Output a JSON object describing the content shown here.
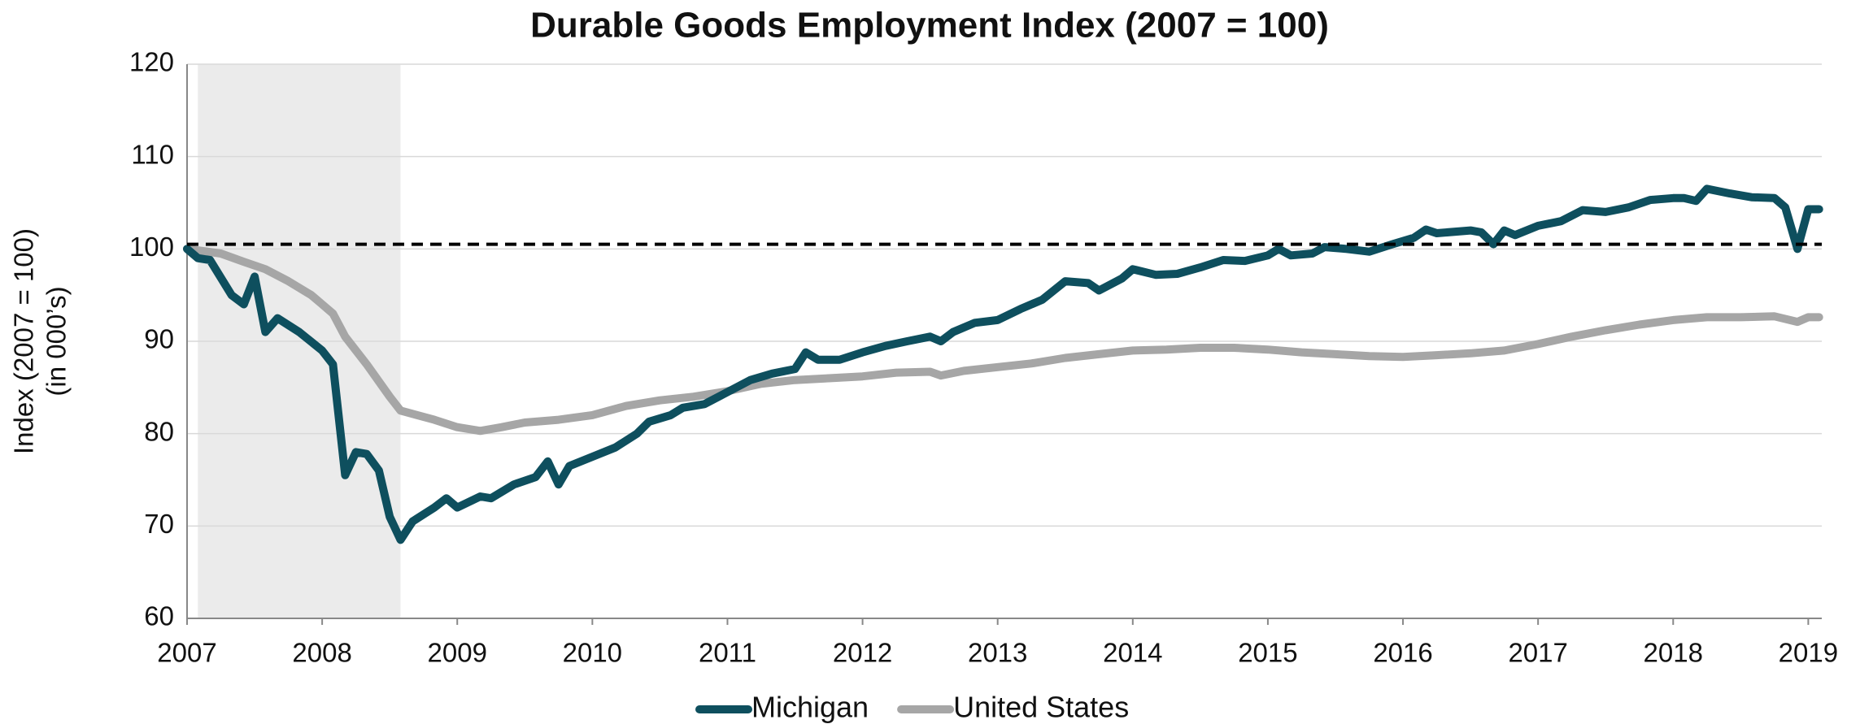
{
  "chart_data": {
    "type": "line",
    "title": "Durable Goods Employment Index (2007 = 100)",
    "ylabel": [
      "Index (2007 = 100)",
      "(in 000’s)"
    ],
    "xlim": [
      2007,
      2019.1
    ],
    "xticks": [
      2007,
      2008,
      2009,
      2010,
      2011,
      2012,
      2013,
      2014,
      2015,
      2016,
      2017,
      2018,
      2019
    ],
    "ylim": [
      60,
      120
    ],
    "yticks": [
      60,
      70,
      80,
      90,
      100,
      110,
      120
    ],
    "grid": true,
    "reference_line": 100.5,
    "shaded_region": [
      2007.08,
      2008.58
    ],
    "legend": "bottom",
    "series": [
      {
        "name": "Michigan",
        "color": "#0e4f5e",
        "x": [
          2007.0,
          2007.08,
          2007.17,
          2007.33,
          2007.42,
          2007.5,
          2007.58,
          2007.67,
          2007.83,
          2008.0,
          2008.08,
          2008.17,
          2008.25,
          2008.33,
          2008.42,
          2008.5,
          2008.58,
          2008.67,
          2008.83,
          2008.92,
          2009.0,
          2009.17,
          2009.25,
          2009.42,
          2009.58,
          2009.67,
          2009.75,
          2009.83,
          2010.0,
          2010.17,
          2010.33,
          2010.42,
          2010.58,
          2010.67,
          2010.83,
          2011.0,
          2011.17,
          2011.33,
          2011.5,
          2011.58,
          2011.67,
          2011.83,
          2012.0,
          2012.17,
          2012.33,
          2012.5,
          2012.58,
          2012.67,
          2012.83,
          2013.0,
          2013.17,
          2013.33,
          2013.5,
          2013.67,
          2013.75,
          2013.92,
          2014.0,
          2014.17,
          2014.33,
          2014.5,
          2014.67,
          2014.83,
          2015.0,
          2015.08,
          2015.17,
          2015.33,
          2015.42,
          2015.58,
          2015.75,
          2015.92,
          2016.08,
          2016.17,
          2016.25,
          2016.5,
          2016.58,
          2016.67,
          2016.75,
          2016.83,
          2017.0,
          2017.17,
          2017.33,
          2017.5,
          2017.67,
          2017.83,
          2018.0,
          2018.08,
          2018.17,
          2018.25,
          2018.42,
          2018.58,
          2018.75,
          2018.83,
          2018.92,
          2019.0,
          2019.08
        ],
        "values": [
          100,
          99,
          98.8,
          95,
          94,
          97,
          91,
          92.5,
          91,
          89,
          87.5,
          75.5,
          78,
          77.8,
          76,
          71,
          68.5,
          70.5,
          72,
          73,
          72,
          73.2,
          73,
          74.5,
          75.3,
          77,
          74.5,
          76.5,
          77.5,
          78.5,
          80,
          81.3,
          82,
          82.8,
          83.2,
          84.5,
          85.8,
          86.5,
          87,
          88.8,
          88,
          88,
          88.8,
          89.5,
          90,
          90.5,
          90,
          91,
          92,
          92.3,
          93.5,
          94.5,
          96.5,
          96.3,
          95.5,
          96.8,
          97.8,
          97.2,
          97.3,
          98,
          98.8,
          98.7,
          99.3,
          100,
          99.3,
          99.5,
          100.2,
          100,
          99.7,
          100.5,
          101.2,
          102.1,
          101.7,
          102,
          101.8,
          100.5,
          102,
          101.5,
          102.5,
          103,
          104.2,
          104,
          104.5,
          105.3,
          105.5,
          105.5,
          105.2,
          106.5,
          106,
          105.6,
          105.5,
          104.5,
          100,
          104.3,
          104.3
        ]
      },
      {
        "name": "United States",
        "color": "#a6a6a6",
        "x": [
          2007.0,
          2007.25,
          2007.42,
          2007.58,
          2007.75,
          2007.92,
          2008.0,
          2008.08,
          2008.17,
          2008.33,
          2008.5,
          2008.58,
          2008.83,
          2009.0,
          2009.17,
          2009.33,
          2009.5,
          2009.75,
          2010.0,
          2010.25,
          2010.5,
          2010.75,
          2011.0,
          2011.25,
          2011.5,
          2011.75,
          2012.0,
          2012.25,
          2012.5,
          2012.58,
          2012.75,
          2013.0,
          2013.25,
          2013.5,
          2013.75,
          2014.0,
          2014.25,
          2014.5,
          2014.75,
          2015.0,
          2015.25,
          2015.5,
          2015.75,
          2016.0,
          2016.25,
          2016.5,
          2016.75,
          2017.0,
          2017.25,
          2017.5,
          2017.75,
          2018.0,
          2018.25,
          2018.5,
          2018.75,
          2018.92,
          2019.0,
          2019.08
        ],
        "values": [
          100,
          99.5,
          98.6,
          97.8,
          96.5,
          95,
          94,
          93,
          90.5,
          87.5,
          84,
          82.5,
          81.5,
          80.7,
          80.3,
          80.7,
          81.2,
          81.5,
          82,
          83,
          83.6,
          84,
          84.6,
          85.4,
          85.8,
          86,
          86.2,
          86.6,
          86.7,
          86.3,
          86.8,
          87.2,
          87.6,
          88.2,
          88.6,
          89,
          89.1,
          89.3,
          89.3,
          89.1,
          88.8,
          88.6,
          88.4,
          88.3,
          88.5,
          88.7,
          89,
          89.7,
          90.5,
          91.2,
          91.8,
          92.3,
          92.6,
          92.6,
          92.7,
          92.1,
          92.6,
          92.6
        ]
      }
    ]
  }
}
